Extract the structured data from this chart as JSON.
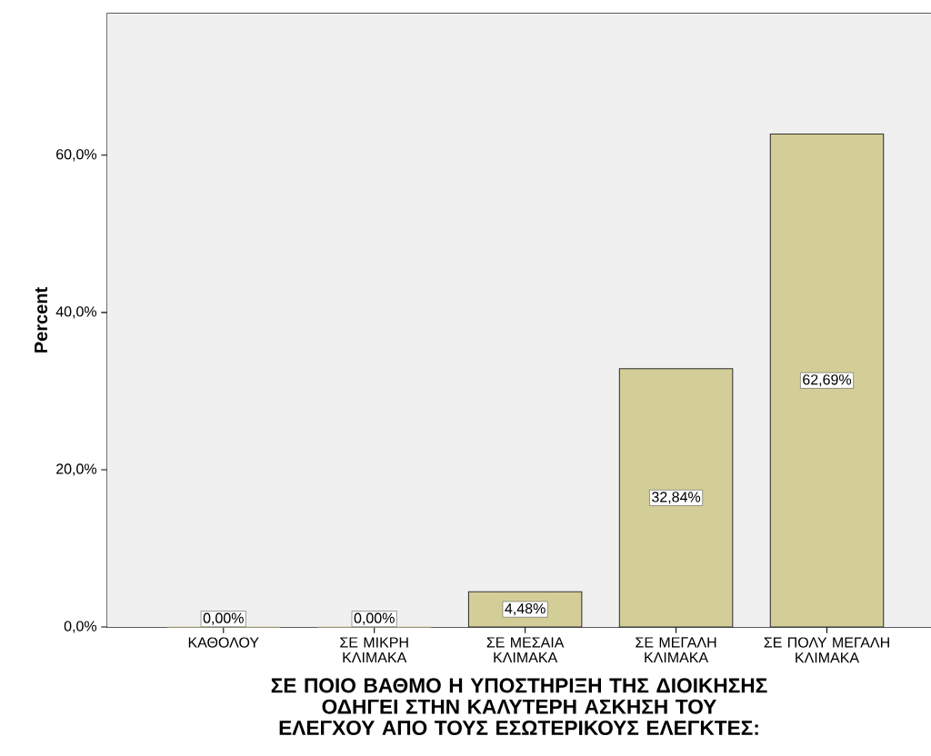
{
  "chart_data": {
    "type": "bar",
    "xlabel": "ΣΕ ΠΟΙΟ ΒΑΘΜΟ Η ΥΠΟΣΤΗΡΙΞΗ ΤΗΣ ΔΙΟΙΚΗΣΗΣ ΟΔΗΓΕΙ ΣΤΗΝ ΚΑΛΥΤΕΡΗ ΑΣΚΗΣΗ ΤΟΥ ΕΛΕΓΧΟΥ ΑΠΟ ΤΟΥΣ ΕΣΩΤΕΡΙΚΟΥΣ ΕΛΕΓΚΤΕΣ:",
    "ylabel": "Percent",
    "categories": [
      "ΚΑΘΟΛΟΥ",
      "ΣΕ ΜΙΚΡΗ ΚΛΙΜΑΚΑ",
      "ΣΕ ΜΕΣΑΙΑ ΚΛΙΜΑΚΑ",
      "ΣΕ ΜΕΓΑΛΗ ΚΛΙΜΑΚΑ",
      "ΣΕ ΠΟΛΥ ΜΕΓΑΛΗ ΚΛΙΜΑΚΑ"
    ],
    "values": [
      0,
      0,
      4.48,
      32.84,
      62.69
    ],
    "value_labels": [
      "0,00%",
      "0,00%",
      "4,48%",
      "32,84%",
      "62,69%"
    ],
    "color": "#d3ce98",
    "ylim": [
      0,
      78
    ],
    "yticks": [
      {
        "value": 0,
        "label": "0,0%"
      },
      {
        "value": 20,
        "label": "20,0%"
      },
      {
        "value": 40,
        "label": "40,0%"
      },
      {
        "value": 60,
        "label": "60,0%"
      }
    ]
  }
}
